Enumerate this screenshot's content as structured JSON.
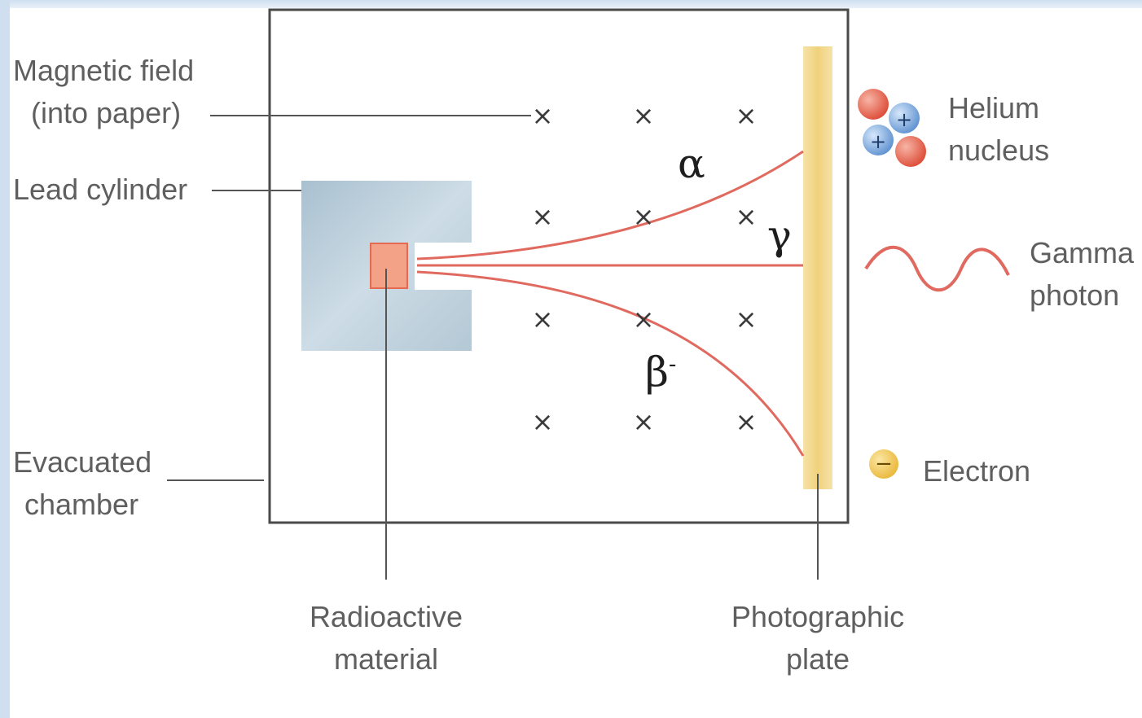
{
  "labels": {
    "magnetic_field": [
      "Magnetic field",
      "(into paper)"
    ],
    "lead_cylinder": "Lead cylinder",
    "evacuated_chamber": [
      "Evacuated",
      "chamber"
    ],
    "radioactive_material": [
      "Radioactive",
      "material"
    ],
    "photographic_plate": [
      "Photographic",
      "plate"
    ]
  },
  "rays": {
    "alpha": "α",
    "gamma": "γ",
    "beta": "β",
    "beta_superscript": "-"
  },
  "legend": {
    "helium": [
      "Helium",
      "nucleus"
    ],
    "gamma": [
      "Gamma",
      "photon"
    ],
    "electron": "Electron",
    "proton_sign": "+",
    "electron_sign": "−"
  },
  "field_symbol": "×",
  "colors": {
    "ray": "#e06a5f",
    "lead": "#b8ccd8",
    "plate": "#f2d58a",
    "proton": "#6f9fd8",
    "neutron": "#e8604e",
    "electron": "#f5c84a",
    "chamber_border": "#4a4a4a"
  }
}
